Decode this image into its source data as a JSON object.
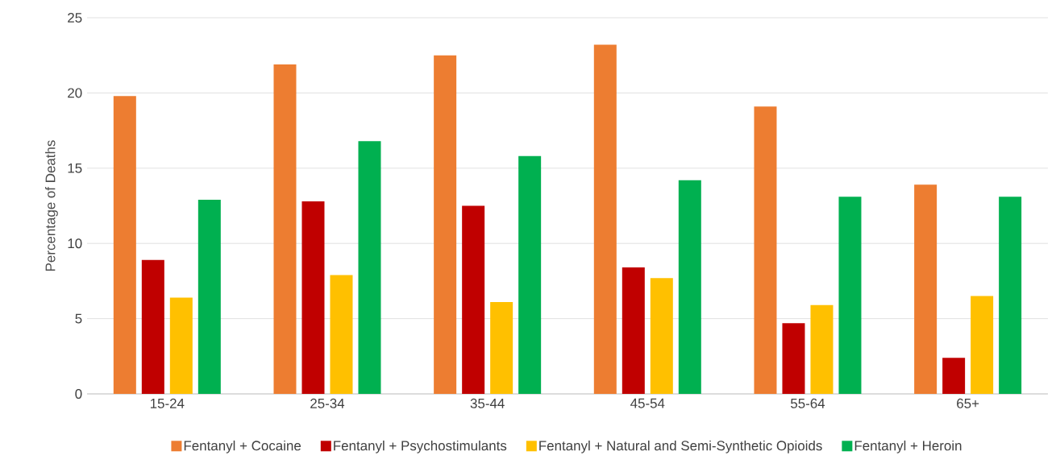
{
  "chart_data": {
    "type": "bar",
    "ylabel": "Percentage of Deaths",
    "categories": [
      "15-24",
      "25-34",
      "35-44",
      "45-54",
      "55-64",
      "65+"
    ],
    "series": [
      {
        "name": "Fentanyl + Cocaine",
        "color": "#ed7d31",
        "values": [
          19.8,
          21.9,
          22.5,
          23.2,
          19.1,
          13.9
        ]
      },
      {
        "name": "Fentanyl + Psychostimulants",
        "color": "#c00000",
        "values": [
          8.9,
          12.8,
          12.5,
          8.4,
          4.7,
          2.4
        ]
      },
      {
        "name": "Fentanyl + Natural and Semi-Synthetic Opioids",
        "color": "#ffc000",
        "values": [
          6.4,
          7.9,
          6.1,
          7.7,
          5.9,
          6.5
        ]
      },
      {
        "name": "Fentanyl + Heroin",
        "color": "#00b050",
        "values": [
          12.9,
          16.8,
          15.8,
          14.2,
          13.1,
          13.1
        ]
      }
    ],
    "ylim": [
      0,
      25
    ],
    "yticks": [
      0,
      5,
      10,
      15,
      20,
      25
    ],
    "grid": "y",
    "legend": "bottom"
  }
}
